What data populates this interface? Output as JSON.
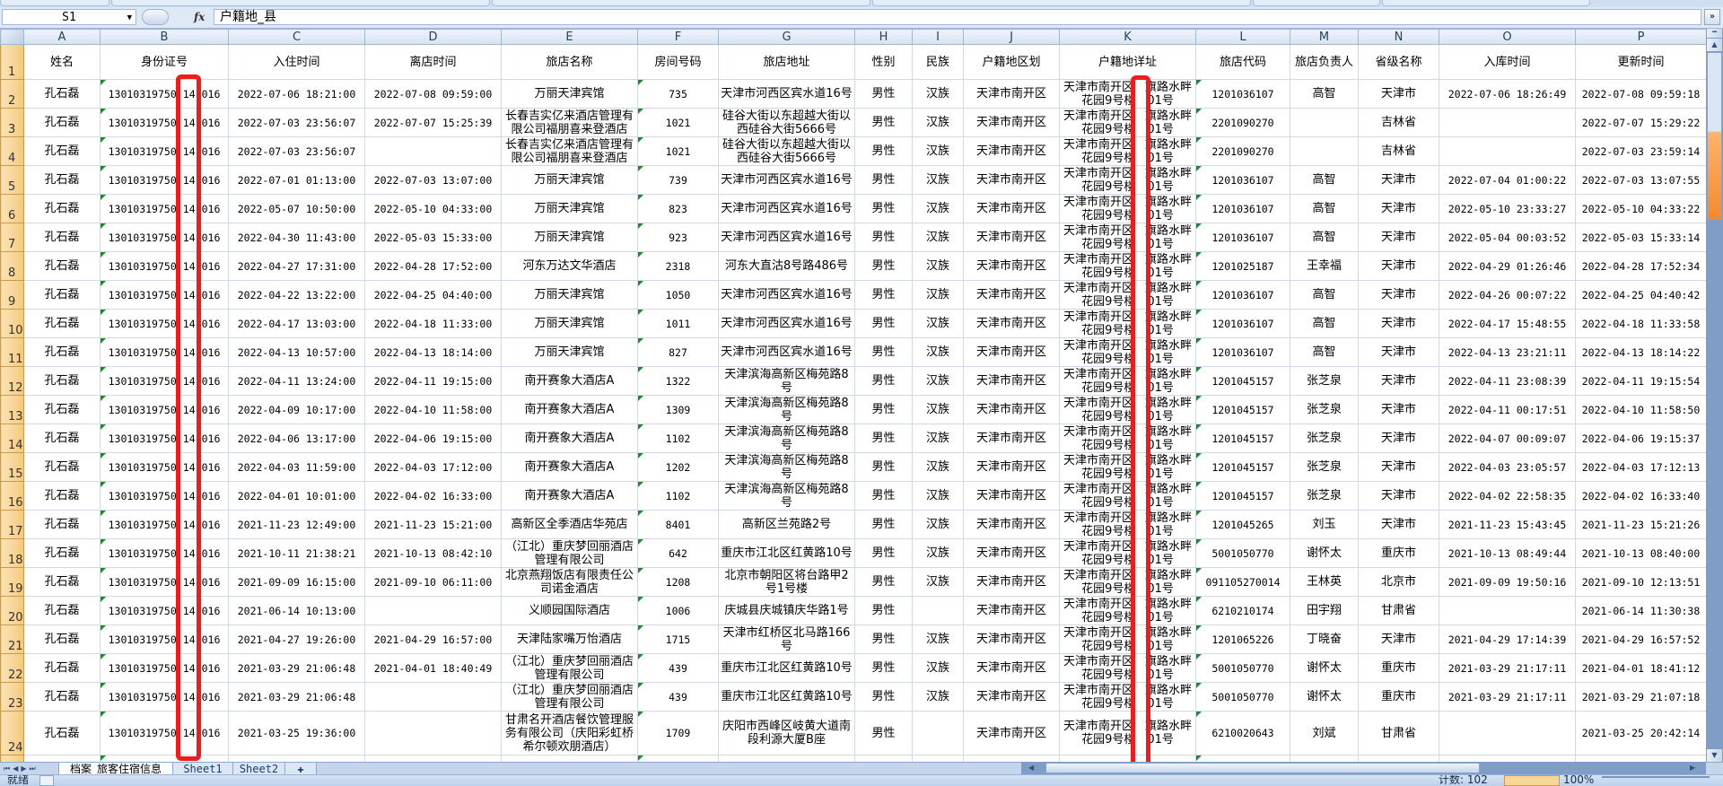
{
  "formula_bar": {
    "name_box": "S1",
    "formula": "户籍地_县",
    "fx_label": "fx"
  },
  "columns": [
    "A",
    "B",
    "C",
    "D",
    "E",
    "F",
    "G",
    "H",
    "I",
    "J",
    "K",
    "L",
    "M",
    "N",
    "O",
    "P"
  ],
  "headers": [
    "姓名",
    "身份证号",
    "入住时间",
    "离店时间",
    "旅店名称",
    "房间号码",
    "旅店地址",
    "性别",
    "民族",
    "户籍地区划",
    "户籍地详址",
    "旅店代码",
    "旅店负责人",
    "省级名称",
    "入库时间",
    "更新时间"
  ],
  "shared": {
    "name": "孔石磊",
    "id_visible_parts": [
      "13010319750",
      "14",
      "016"
    ],
    "hukou_detail_lines": [
      [
        "天津市南开区",
        "旗路水畔"
      ],
      [
        "花园9号楼",
        "01号"
      ]
    ]
  },
  "rows": [
    {
      "n": "2",
      "C": "2022-07-06 18:21:00",
      "D": "2022-07-08 09:59:00",
      "E": "万丽天津宾馆",
      "F": "735",
      "G": "天津市河西区宾水道16号",
      "H": "男性",
      "I": "汉族",
      "J": "天津市南开区",
      "L": "1201036107",
      "M": "高智",
      "N": "天津市",
      "O": "2022-07-06 18:26:49",
      "P": "2022-07-08 09:59:18"
    },
    {
      "n": "3",
      "C": "2022-07-03 23:56:07",
      "D": "2022-07-07 15:25:39",
      "E": "长春吉实亿来酒店管理有限公司福朋喜来登酒店",
      "F": "1021",
      "G": "硅谷大街以东超越大街以西硅谷大街5666号",
      "H": "男性",
      "I": "汉族",
      "J": "天津市南开区",
      "L": "2201090270",
      "M": "",
      "N": "吉林省",
      "O": "",
      "P": "2022-07-07 15:29:22"
    },
    {
      "n": "4",
      "C": "2022-07-03 23:56:07",
      "D": "",
      "E": "长春吉实亿来酒店管理有限公司福朋喜来登酒店",
      "F": "1021",
      "G": "硅谷大街以东超越大街以西硅谷大街5666号",
      "H": "男性",
      "I": "汉族",
      "J": "天津市南开区",
      "L": "2201090270",
      "M": "",
      "N": "吉林省",
      "O": "",
      "P": "2022-07-03 23:59:14"
    },
    {
      "n": "5",
      "C": "2022-07-01 01:13:00",
      "D": "2022-07-03 13:07:00",
      "E": "万丽天津宾馆",
      "F": "739",
      "G": "天津市河西区宾水道16号",
      "H": "男性",
      "I": "汉族",
      "J": "天津市南开区",
      "L": "1201036107",
      "M": "高智",
      "N": "天津市",
      "O": "2022-07-04 01:00:22",
      "P": "2022-07-03 13:07:55"
    },
    {
      "n": "6",
      "C": "2022-05-07 10:50:00",
      "D": "2022-05-10 04:33:00",
      "E": "万丽天津宾馆",
      "F": "823",
      "G": "天津市河西区宾水道16号",
      "H": "男性",
      "I": "汉族",
      "J": "天津市南开区",
      "L": "1201036107",
      "M": "高智",
      "N": "天津市",
      "O": "2022-05-10 23:33:27",
      "P": "2022-05-10 04:33:22"
    },
    {
      "n": "7",
      "C": "2022-04-30 11:43:00",
      "D": "2022-05-03 15:33:00",
      "E": "万丽天津宾馆",
      "F": "923",
      "G": "天津市河西区宾水道16号",
      "H": "男性",
      "I": "汉族",
      "J": "天津市南开区",
      "L": "1201036107",
      "M": "高智",
      "N": "天津市",
      "O": "2022-05-04 00:03:52",
      "P": "2022-05-03 15:33:14"
    },
    {
      "n": "8",
      "C": "2022-04-27 17:31:00",
      "D": "2022-04-28 17:52:00",
      "E": "河东万达文华酒店",
      "F": "2318",
      "G": "河东大直沽8号路486号",
      "H": "男性",
      "I": "汉族",
      "J": "天津市南开区",
      "L": "1201025187",
      "M": "王幸福",
      "N": "天津市",
      "O": "2022-04-29 01:26:46",
      "P": "2022-04-28 17:52:34"
    },
    {
      "n": "9",
      "C": "2022-04-22 13:22:00",
      "D": "2022-04-25 04:40:00",
      "E": "万丽天津宾馆",
      "F": "1050",
      "G": "天津市河西区宾水道16号",
      "H": "男性",
      "I": "汉族",
      "J": "天津市南开区",
      "L": "1201036107",
      "M": "高智",
      "N": "天津市",
      "O": "2022-04-26 00:07:22",
      "P": "2022-04-25 04:40:42"
    },
    {
      "n": "10",
      "C": "2022-04-17 13:03:00",
      "D": "2022-04-18 11:33:00",
      "E": "万丽天津宾馆",
      "F": "1011",
      "G": "天津市河西区宾水道16号",
      "H": "男性",
      "I": "汉族",
      "J": "天津市南开区",
      "L": "1201036107",
      "M": "高智",
      "N": "天津市",
      "O": "2022-04-17 15:48:55",
      "P": "2022-04-18 11:33:58"
    },
    {
      "n": "11",
      "C": "2022-04-13 10:57:00",
      "D": "2022-04-13 18:14:00",
      "E": "万丽天津宾馆",
      "F": "827",
      "G": "天津市河西区宾水道16号",
      "H": "男性",
      "I": "汉族",
      "J": "天津市南开区",
      "L": "1201036107",
      "M": "高智",
      "N": "天津市",
      "O": "2022-04-13 23:21:11",
      "P": "2022-04-13 18:14:22"
    },
    {
      "n": "12",
      "C": "2022-04-11 13:24:00",
      "D": "2022-04-11 19:15:00",
      "E": "南开赛象大酒店A",
      "F": "1322",
      "G": "天津滨海高新区梅苑路8号",
      "H": "男性",
      "I": "汉族",
      "J": "天津市南开区",
      "L": "1201045157",
      "M": "张芝泉",
      "N": "天津市",
      "O": "2022-04-11 23:08:39",
      "P": "2022-04-11 19:15:54"
    },
    {
      "n": "13",
      "C": "2022-04-09 10:17:00",
      "D": "2022-04-10 11:58:00",
      "E": "南开赛象大酒店A",
      "F": "1309",
      "G": "天津滨海高新区梅苑路8号",
      "H": "男性",
      "I": "汉族",
      "J": "天津市南开区",
      "L": "1201045157",
      "M": "张芝泉",
      "N": "天津市",
      "O": "2022-04-11 00:17:51",
      "P": "2022-04-10 11:58:50"
    },
    {
      "n": "14",
      "C": "2022-04-06 13:17:00",
      "D": "2022-04-06 19:15:00",
      "E": "南开赛象大酒店A",
      "F": "1102",
      "G": "天津滨海高新区梅苑路8号",
      "H": "男性",
      "I": "汉族",
      "J": "天津市南开区",
      "L": "1201045157",
      "M": "张芝泉",
      "N": "天津市",
      "O": "2022-04-07 00:09:07",
      "P": "2022-04-06 19:15:37"
    },
    {
      "n": "15",
      "C": "2022-04-03 11:59:00",
      "D": "2022-04-03 17:12:00",
      "E": "南开赛象大酒店A",
      "F": "1202",
      "G": "天津滨海高新区梅苑路8号",
      "H": "男性",
      "I": "汉族",
      "J": "天津市南开区",
      "L": "1201045157",
      "M": "张芝泉",
      "N": "天津市",
      "O": "2022-04-03 23:05:57",
      "P": "2022-04-03 17:12:13"
    },
    {
      "n": "16",
      "C": "2022-04-01 10:01:00",
      "D": "2022-04-02 16:33:00",
      "E": "南开赛象大酒店A",
      "F": "1102",
      "G": "天津滨海高新区梅苑路8号",
      "H": "男性",
      "I": "汉族",
      "J": "天津市南开区",
      "L": "1201045157",
      "M": "张芝泉",
      "N": "天津市",
      "O": "2022-04-02 22:58:35",
      "P": "2022-04-02 16:33:40"
    },
    {
      "n": "17",
      "C": "2021-11-23 12:49:00",
      "D": "2021-11-23 15:21:00",
      "E": "高新区全季酒店华苑店",
      "F": "8401",
      "G": "高新区兰苑路2号",
      "H": "男性",
      "I": "汉族",
      "J": "天津市南开区",
      "L": "1201045265",
      "M": "刘玉",
      "N": "天津市",
      "O": "2021-11-23 15:43:45",
      "P": "2021-11-23 15:21:26"
    },
    {
      "n": "18",
      "C": "2021-10-11 21:38:21",
      "D": "2021-10-13 08:42:10",
      "E": "（江北）重庆梦回丽酒店管理有限公司",
      "F": "642",
      "G": "重庆市江北区红黄路10号",
      "H": "男性",
      "I": "汉族",
      "J": "天津市南开区",
      "L": "5001050770",
      "M": "谢怀太",
      "N": "重庆市",
      "O": "2021-10-13 08:49:44",
      "P": "2021-10-13 08:40:00"
    },
    {
      "n": "19",
      "C": "2021-09-09 16:15:00",
      "D": "2021-09-10 06:11:00",
      "E": "北京燕翔饭店有限责任公司诺金酒店",
      "F": "1208",
      "G": "北京市朝阳区将台路甲2号1号楼",
      "H": "男性",
      "I": "汉族",
      "J": "天津市南开区",
      "L": "091105270014",
      "M": "王林英",
      "N": "北京市",
      "O": "2021-09-09 19:50:16",
      "P": "2021-09-10 12:13:51"
    },
    {
      "n": "20",
      "C": "2021-06-14 10:13:00",
      "D": "",
      "E": "义顺园国际酒店",
      "F": "1006",
      "G": "庆城县庆城镇庆华路1号",
      "H": "男性",
      "I": "",
      "J": "天津市南开区",
      "L": "6210210174",
      "M": "田宇翔",
      "N": "甘肃省",
      "O": "",
      "P": "2021-06-14 11:30:38"
    },
    {
      "n": "21",
      "C": "2021-04-27 19:26:00",
      "D": "2021-04-29 16:57:00",
      "E": "天津陆家嘴万怡酒店",
      "F": "1715",
      "G": "天津市红桥区北马路166号",
      "H": "男性",
      "I": "汉族",
      "J": "天津市南开区",
      "L": "1201065226",
      "M": "丁晓奋",
      "N": "天津市",
      "O": "2021-04-29 17:14:39",
      "P": "2021-04-29 16:57:52"
    },
    {
      "n": "22",
      "C": "2021-03-29 21:06:48",
      "D": "2021-04-01 18:40:49",
      "E": "（江北）重庆梦回丽酒店管理有限公司",
      "F": "439",
      "G": "重庆市江北区红黄路10号",
      "H": "男性",
      "I": "汉族",
      "J": "天津市南开区",
      "L": "5001050770",
      "M": "谢怀太",
      "N": "重庆市",
      "O": "2021-03-29 21:17:11",
      "P": "2021-04-01 18:41:12"
    },
    {
      "n": "23",
      "C": "2021-03-29 21:06:48",
      "D": "",
      "E": "（江北）重庆梦回丽酒店管理有限公司",
      "F": "439",
      "G": "重庆市江北区红黄路10号",
      "H": "男性",
      "I": "汉族",
      "J": "天津市南开区",
      "L": "5001050770",
      "M": "谢怀太",
      "N": "重庆市",
      "O": "2021-03-29 21:17:11",
      "P": "2021-03-29 21:07:18"
    },
    {
      "n": "24",
      "C": "2021-03-25 19:36:00",
      "D": "",
      "E": "甘肃名开酒店餐饮管理服务有限公司（庆阳彩虹桥希尔顿欢朋酒店）",
      "F": "1709",
      "G": "庆阳市西峰区岐黄大道南段利源大厦B座",
      "H": "男性",
      "I": "",
      "J": "天津市南开区",
      "L": "6210020643",
      "M": "刘斌",
      "N": "甘肃省",
      "O": "",
      "P": "2021-03-25 20:42:14"
    }
  ],
  "sheet_tabs": [
    {
      "label": "档案_旅客住宿信息",
      "active": true
    },
    {
      "label": "Sheet1",
      "active": false
    },
    {
      "label": "Sheet2",
      "active": false
    }
  ],
  "status_bar": {
    "ready": "就绪",
    "count": "计数: 102",
    "zoom": "100%"
  },
  "colors": {
    "annotation_red": "#ee1c1c",
    "text_number_flag": "#1b8a2b",
    "row_header": "#f5c97c"
  }
}
